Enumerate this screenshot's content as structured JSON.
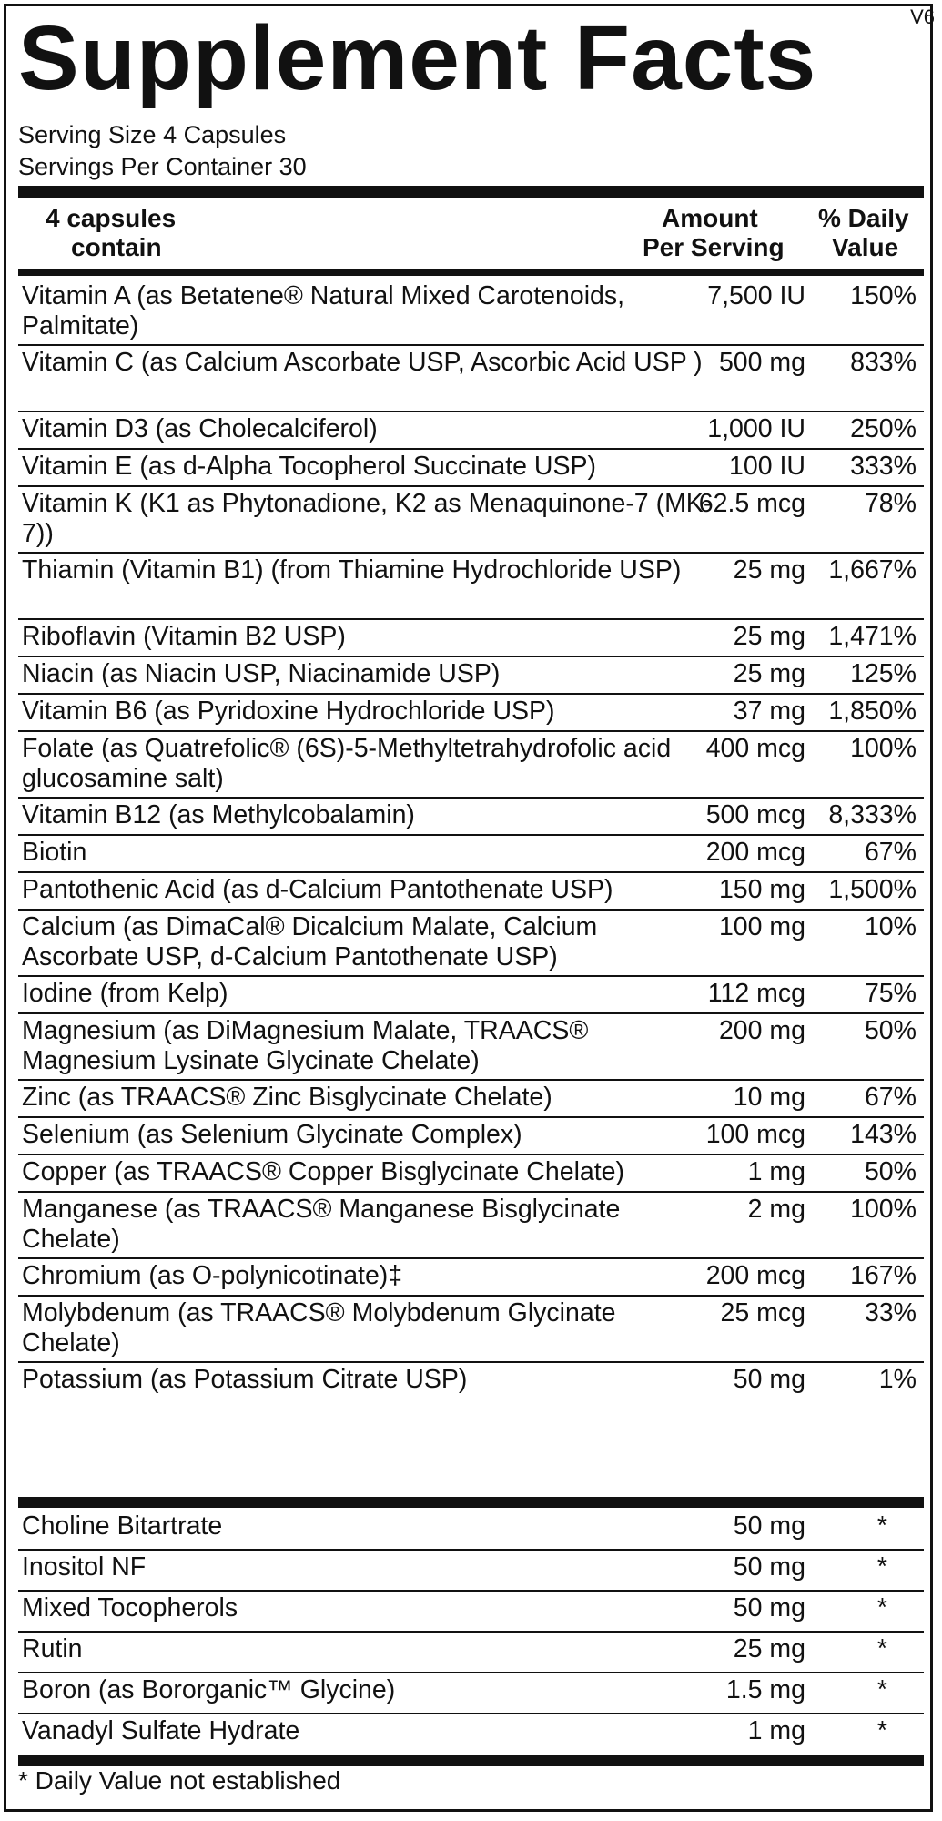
{
  "version": "V6",
  "title": "Supplement Facts",
  "serving_size": "Serving Size 4 Capsules",
  "servings_per_container": "Servings Per Container 30",
  "header": {
    "col1_line1": "4 capsules",
    "col1_line2": "contain",
    "col2_line1": "Amount",
    "col2_line2": "Per Serving",
    "col3_line1": "% Daily",
    "col3_line2": "Value"
  },
  "nutrients": [
    {
      "name": "Vitamin A (as Betatene® Natural Mixed Carotenoids, Palmitate)",
      "amount": "7,500 IU",
      "dv": "150%"
    },
    {
      "name": "Vitamin C (as Calcium Ascorbate USP, Ascorbic Acid USP )",
      "amount": "500 mg",
      "dv": "833%"
    },
    {
      "name": "Vitamin D3 (as Cholecalciferol)",
      "amount": "1,000 IU",
      "dv": "250%"
    },
    {
      "name": "Vitamin E (as d-Alpha Tocopherol Succinate USP)",
      "amount": "100 IU",
      "dv": "333%"
    },
    {
      "name": "Vitamin K (K1 as Phytonadione, K2 as Menaquinone-7 (MK-7))",
      "amount": "62.5 mcg",
      "dv": "78%"
    },
    {
      "name": "Thiamin (Vitamin B1) (from Thiamine Hydrochloride USP)",
      "amount": "25 mg",
      "dv": "1,667%"
    },
    {
      "name": "Riboflavin (Vitamin B2 USP)",
      "amount": "25 mg",
      "dv": "1,471%"
    },
    {
      "name": "Niacin (as Niacin USP, Niacinamide USP)",
      "amount": "25 mg",
      "dv": "125%"
    },
    {
      "name": "Vitamin B6 (as Pyridoxine Hydrochloride USP)",
      "amount": "37 mg",
      "dv": "1,850%"
    },
    {
      "name": "Folate (as Quatrefolic® (6S)-5-Methyltetrahydrofolic acid glucosamine salt)",
      "amount": "400 mcg",
      "dv": "100%"
    },
    {
      "name": "Vitamin B12 (as Methylcobalamin)",
      "amount": "500 mcg",
      "dv": "8,333%"
    },
    {
      "name": "Biotin",
      "amount": "200 mcg",
      "dv": "67%"
    },
    {
      "name": "Pantothenic Acid (as d-Calcium Pantothenate USP)",
      "amount": "150 mg",
      "dv": "1,500%"
    },
    {
      "name": "Calcium (as DimaCal® Dicalcium Malate, Calcium Ascorbate USP, d-Calcium Pantothenate USP)",
      "amount": "100 mg",
      "dv": "10%"
    },
    {
      "name": "Iodine (from Kelp)",
      "amount": "112 mcg",
      "dv": "75%"
    },
    {
      "name": "Magnesium (as DiMagnesium Malate, TRAACS® Magnesium Lysinate Glycinate Chelate)",
      "amount": "200 mg",
      "dv": "50%"
    },
    {
      "name": "Zinc (as TRAACS® Zinc Bisglycinate Chelate)",
      "amount": "10 mg",
      "dv": "67%"
    },
    {
      "name": "Selenium (as Selenium Glycinate Complex)",
      "amount": "100 mcg",
      "dv": "143%"
    },
    {
      "name": "Copper (as TRAACS® Copper Bisglycinate Chelate)",
      "amount": "1 mg",
      "dv": "50%"
    },
    {
      "name": "Manganese (as TRAACS® Manganese Bisglycinate Chelate)",
      "amount": "2 mg",
      "dv": "100%"
    },
    {
      "name": "Chromium (as O-polynicotinate)‡",
      "amount": "200 mcg",
      "dv": "167%"
    },
    {
      "name": "Molybdenum (as TRAACS® Molybdenum Glycinate Chelate)",
      "amount": "25 mcg",
      "dv": "33%"
    },
    {
      "name": "Potassium (as Potassium Citrate USP)",
      "amount": "50 mg",
      "dv": "1%"
    }
  ],
  "other_ingredients": [
    {
      "name": "Choline Bitartrate",
      "amount": "50 mg",
      "dv": "*"
    },
    {
      "name": "Inositol NF",
      "amount": "50 mg",
      "dv": "*"
    },
    {
      "name": "Mixed Tocopherols",
      "amount": "50 mg",
      "dv": "*"
    },
    {
      "name": "Rutin",
      "amount": "25 mg",
      "dv": "*"
    },
    {
      "name": "Boron (as Bororganic™ Glycine)",
      "amount": "1.5 mg",
      "dv": "*"
    },
    {
      "name": "Vanadyl Sulfate Hydrate",
      "amount": "1 mg",
      "dv": "*"
    }
  ],
  "footnote": "* Daily Value not established"
}
